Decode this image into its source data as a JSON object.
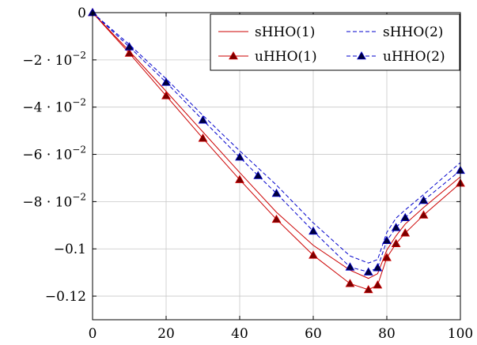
{
  "chart_data": {
    "type": "line",
    "title": "",
    "xlabel": "",
    "ylabel": "",
    "xlim": [
      0,
      100
    ],
    "ylim": [
      -0.13,
      0
    ],
    "grid": true,
    "legend_position": "top-right",
    "x_ticks": [
      {
        "value": 0,
        "label": "0"
      },
      {
        "value": 20,
        "label": "20"
      },
      {
        "value": 40,
        "label": "40"
      },
      {
        "value": 60,
        "label": "60"
      },
      {
        "value": 80,
        "label": "80"
      },
      {
        "value": 100,
        "label": "100"
      }
    ],
    "y_ticks": [
      {
        "value": 0,
        "label": "0",
        "base": "",
        "exp": ""
      },
      {
        "value": -0.02,
        "label": "−2 · 10",
        "base": "−2 · 10",
        "exp": "−2"
      },
      {
        "value": -0.04,
        "label": "−4 · 10",
        "base": "−4 · 10",
        "exp": "−2"
      },
      {
        "value": -0.06,
        "label": "−6 · 10",
        "base": "−6 · 10",
        "exp": "−2"
      },
      {
        "value": -0.08,
        "label": "−8 · 10",
        "base": "−8 · 10",
        "exp": "−2"
      },
      {
        "value": -0.1,
        "label": "−0.1",
        "base": "",
        "exp": ""
      },
      {
        "value": -0.12,
        "label": "−0.12",
        "base": "",
        "exp": ""
      }
    ],
    "series": [
      {
        "name": "sHHO(1)",
        "color": "#cc0000",
        "dash": "solid",
        "marker": "none",
        "x": [
          0,
          10,
          20,
          30,
          40,
          50,
          60,
          70,
          75,
          77.5,
          80,
          82.5,
          85,
          90,
          100
        ],
        "y": [
          0,
          -0.0163,
          -0.0333,
          -0.0505,
          -0.0677,
          -0.0845,
          -0.0985,
          -0.109,
          -0.1125,
          -0.1105,
          -0.1005,
          -0.0945,
          -0.0895,
          -0.0825,
          -0.0695
        ]
      },
      {
        "name": "sHHO(2)",
        "color": "#0000cc",
        "dash": "dashed",
        "marker": "none",
        "x": [
          0,
          10,
          20,
          30,
          40,
          50,
          60,
          70,
          75,
          77.5,
          80,
          82.5,
          85,
          90,
          100
        ],
        "y": [
          0,
          -0.0135,
          -0.028,
          -0.0435,
          -0.0585,
          -0.073,
          -0.089,
          -0.103,
          -0.106,
          -0.1045,
          -0.093,
          -0.087,
          -0.0835,
          -0.077,
          -0.0635
        ]
      },
      {
        "name": "uHHO(1)",
        "color": "#cc0000",
        "dash": "solid",
        "marker": "triangle",
        "x": [
          0,
          10,
          20,
          30,
          40,
          50,
          60,
          70,
          75,
          77.5,
          80,
          82.5,
          85,
          90,
          100
        ],
        "y": [
          0,
          -0.0172,
          -0.0352,
          -0.0532,
          -0.0707,
          -0.0875,
          -0.1027,
          -0.1147,
          -0.1173,
          -0.1153,
          -0.1037,
          -0.0978,
          -0.0933,
          -0.0857,
          -0.0722
        ]
      },
      {
        "name": "uHHO(2)",
        "color": "#0000cc",
        "dash": "dashed",
        "marker": "triangle",
        "x": [
          0,
          10,
          20,
          30,
          40,
          45,
          50,
          60,
          70,
          75,
          77.5,
          80,
          82.5,
          85,
          90,
          100
        ],
        "y": [
          0,
          -0.0145,
          -0.0295,
          -0.0455,
          -0.0612,
          -0.069,
          -0.0765,
          -0.0925,
          -0.1077,
          -0.1098,
          -0.108,
          -0.0965,
          -0.091,
          -0.0868,
          -0.0795,
          -0.0668
        ]
      }
    ]
  }
}
